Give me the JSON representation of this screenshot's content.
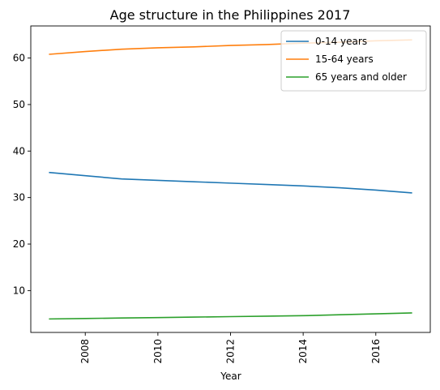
{
  "chart_data": {
    "type": "line",
    "title": "Age structure in the Philippines 2017",
    "xlabel": "Year",
    "ylabel": "",
    "x": [
      2007,
      2008,
      2009,
      2010,
      2011,
      2012,
      2013,
      2014,
      2015,
      2016,
      2017
    ],
    "xlim": [
      2006.5,
      2017.5
    ],
    "ylim": [
      1.0,
      66.9
    ],
    "xticks": [
      "2008",
      "2010",
      "2012",
      "2014",
      "2016"
    ],
    "yticks": [
      "10",
      "20",
      "30",
      "40",
      "50",
      "60"
    ],
    "legend_position": "top-right",
    "grid": false,
    "series": [
      {
        "name": "0-14 years",
        "color": "#1f77b4",
        "values": [
          35.4,
          34.7,
          34.0,
          33.7,
          33.4,
          33.1,
          32.8,
          32.5,
          32.1,
          31.6,
          31.0
        ]
      },
      {
        "name": "15-64 years",
        "color": "#ff7f0e",
        "values": [
          60.8,
          61.4,
          61.9,
          62.2,
          62.4,
          62.7,
          62.9,
          63.2,
          63.4,
          63.7,
          63.9
        ]
      },
      {
        "name": "65 years and older",
        "color": "#2ca02c",
        "values": [
          3.9,
          4.0,
          4.1,
          4.2,
          4.3,
          4.4,
          4.5,
          4.6,
          4.8,
          5.0,
          5.2
        ]
      }
    ]
  }
}
